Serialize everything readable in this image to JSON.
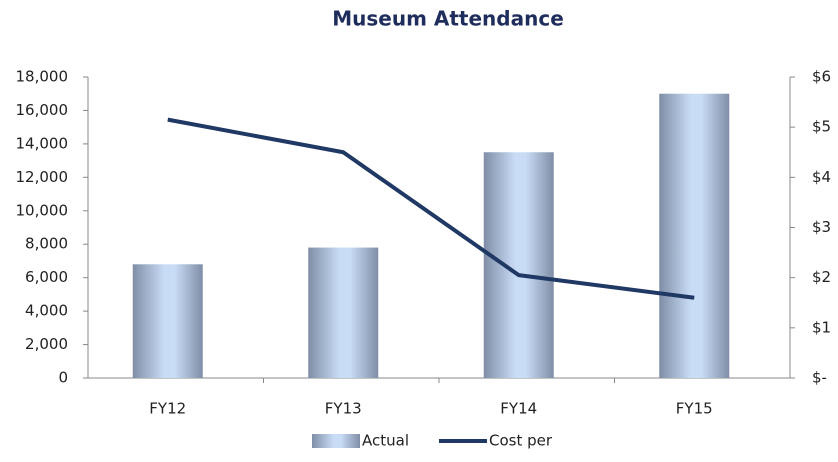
{
  "chart_data": {
    "type": "bar_line",
    "title": "Museum Attendance",
    "categories": [
      "FY12",
      "FY13",
      "FY14",
      "FY15"
    ],
    "series": [
      {
        "name": "Actual",
        "type": "bar",
        "color": "#c9dcf6",
        "values": [
          6800,
          7800,
          13500,
          17000
        ]
      },
      {
        "name": "Cost per",
        "type": "line",
        "axis": "y2",
        "color": "#1f3864",
        "values": [
          5.15,
          4.5,
          2.05,
          1.6
        ]
      }
    ],
    "ylim": [
      0,
      18000
    ],
    "yticks": [
      0,
      {
        "value": 2000,
        "label": "2,000"
      },
      {
        "value": 4000,
        "label": "4,000"
      },
      {
        "value": 6000,
        "label": "6,000"
      },
      {
        "value": 8000,
        "label": "8,000"
      },
      {
        "value": 10000,
        "label": "10,000"
      },
      {
        "value": 12000,
        "label": "12,000"
      },
      {
        "value": 14000,
        "label": "14,000"
      },
      {
        "value": 16000,
        "label": "16,000"
      },
      {
        "value": 18000,
        "label": "18,000"
      }
    ],
    "y2lim": [
      0,
      6
    ],
    "y2ticks": [
      {
        "value": 0,
        "label": "$-"
      },
      {
        "value": 1,
        "label": "$1"
      },
      {
        "value": 2,
        "label": "$2"
      },
      {
        "value": 3,
        "label": "$3"
      },
      {
        "value": 4,
        "label": "$4"
      },
      {
        "value": 5,
        "label": "$5"
      },
      {
        "value": 6,
        "label": "$6"
      }
    ],
    "legend": "bottom"
  }
}
